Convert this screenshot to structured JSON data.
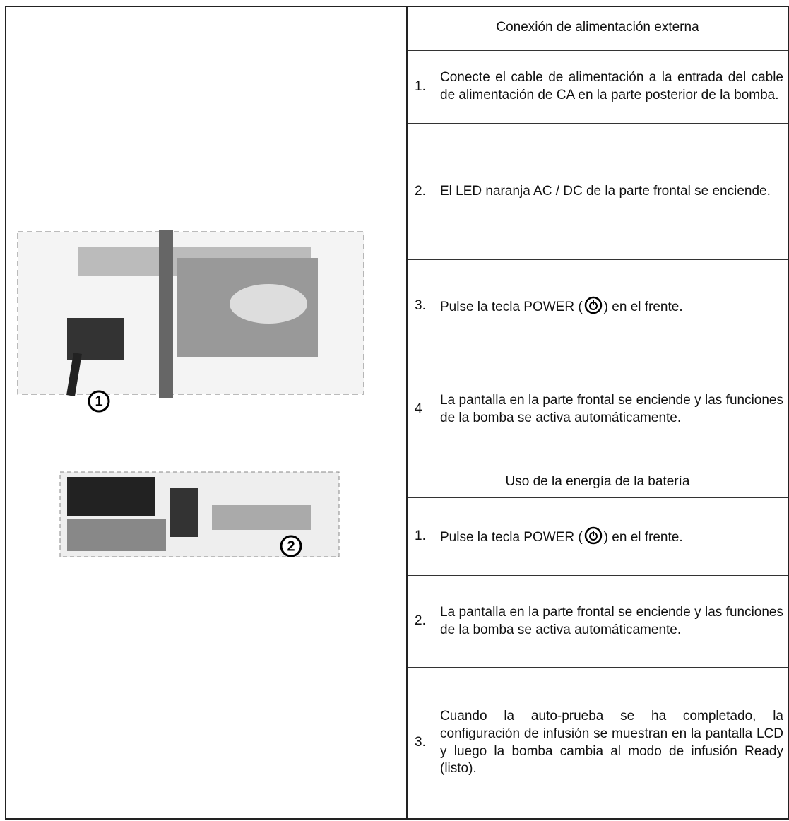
{
  "figures": [
    {
      "label": "1"
    },
    {
      "label": "2"
    }
  ],
  "sections": [
    {
      "title": "Conexión de alimentación externa",
      "steps": [
        {
          "number": "1.",
          "text": "Conecte el cable de alimentación a la entrada del cable de alimentación de CA en la parte posterior de la bomba."
        },
        {
          "number": "2.",
          "text": "El LED naranja AC / DC de la parte frontal se enciende."
        },
        {
          "number": "3.",
          "text_before": "Pulse la tecla POWER (",
          "text_after": ") en el frente."
        },
        {
          "number": "4",
          "text": "La pantalla en la parte frontal se enciende y las funciones de la bomba se activa automáticamente."
        }
      ]
    },
    {
      "title": "Uso de la energía de la batería",
      "steps": [
        {
          "number": "1.",
          "text_before": "Pulse la tecla POWER (",
          "text_after": ") en el frente."
        },
        {
          "number": "2.",
          "text": "La pantalla en la parte frontal se enciende y las funciones de la bomba se activa automáticamente."
        },
        {
          "number": "3.",
          "text": "Cuando la auto-prueba se ha completado, la configuración de infusión se muestran en la pantalla LCD y luego la bomba cambia al modo de infusión Ready (listo)."
        }
      ]
    }
  ]
}
